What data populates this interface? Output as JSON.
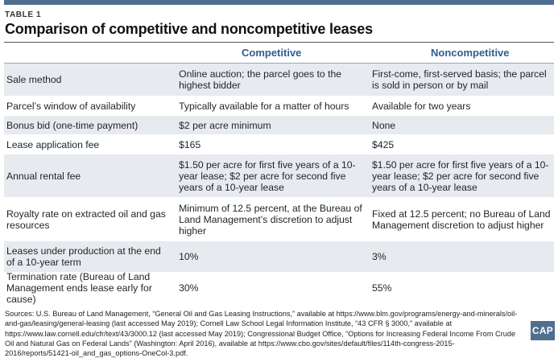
{
  "header": {
    "label": "TABLE 1",
    "title": "Comparison of competitive and noncompetitive leases"
  },
  "columns": {
    "competitive": "Competitive",
    "noncompetitive": "Noncompetitive"
  },
  "rows": [
    {
      "label": "Sale method",
      "competitive": "Online auction; the parcel goes to the highest bidder",
      "noncompetitive": "First-come, first-served basis; the parcel is sold in person or by mail"
    },
    {
      "label": "Parcel’s window of availability",
      "competitive": "Typically available for a matter of hours",
      "noncompetitive": "Available for two years"
    },
    {
      "label": "Bonus bid (one-time payment)",
      "competitive": "$2 per acre minimum",
      "noncompetitive": "None"
    },
    {
      "label": "Lease application fee",
      "competitive": "$165",
      "noncompetitive": "$425"
    },
    {
      "label": "Annual rental fee",
      "competitive": "$1.50 per acre for first five years of a 10-year lease; $2 per acre for second five years of a 10-year lease",
      "noncompetitive": "$1.50 per acre for first five years of a 10-year lease; $2 per acre for second five years of a 10-year lease"
    },
    {
      "label": "Royalty rate on extracted oil and gas resources",
      "competitive": "Minimum of 12.5 percent, at the Bureau of Land Management’s discretion to adjust higher",
      "noncompetitive": "Fixed at 12.5 percent; no Bureau of Land Management discretion to adjust higher"
    },
    {
      "label": "Leases under production at the end of a 10-year term",
      "competitive": "10%",
      "noncompetitive": "3%"
    },
    {
      "label": "Termination rate (Bureau of Land Management ends lease early for cause)",
      "competitive": "30%",
      "noncompetitive": "55%"
    }
  ],
  "sources": "Sources: U.S. Bureau of Land Management, “General Oil and Gas Leasing Instructions,” available at https://www.blm.gov/programs/energy-and-minerals/oil-and-gas/leasing/general-leasing (last accessed May 2019); Cornell Law School Legal Information Institute, “43 CFR § 3000,” available at https://www.law.cornell.edu/cfr/text/43/3000.12 (last accessed May 2019); Congressional Budget Office, “Options for Increasing Federal Income From Crude Oil and Natural Gas on Federal Lands” (Washington: April 2016), available at https://www.cbo.gov/sites/default/files/114th-congress-2015-2016/reports/51421-oil_and_gas_options-OneCol-3.pdf.",
  "logo": "CAP",
  "colors": {
    "accent": "#4f6f8f",
    "heading": "#2f5e8e",
    "stripe": "#e7eaee"
  }
}
